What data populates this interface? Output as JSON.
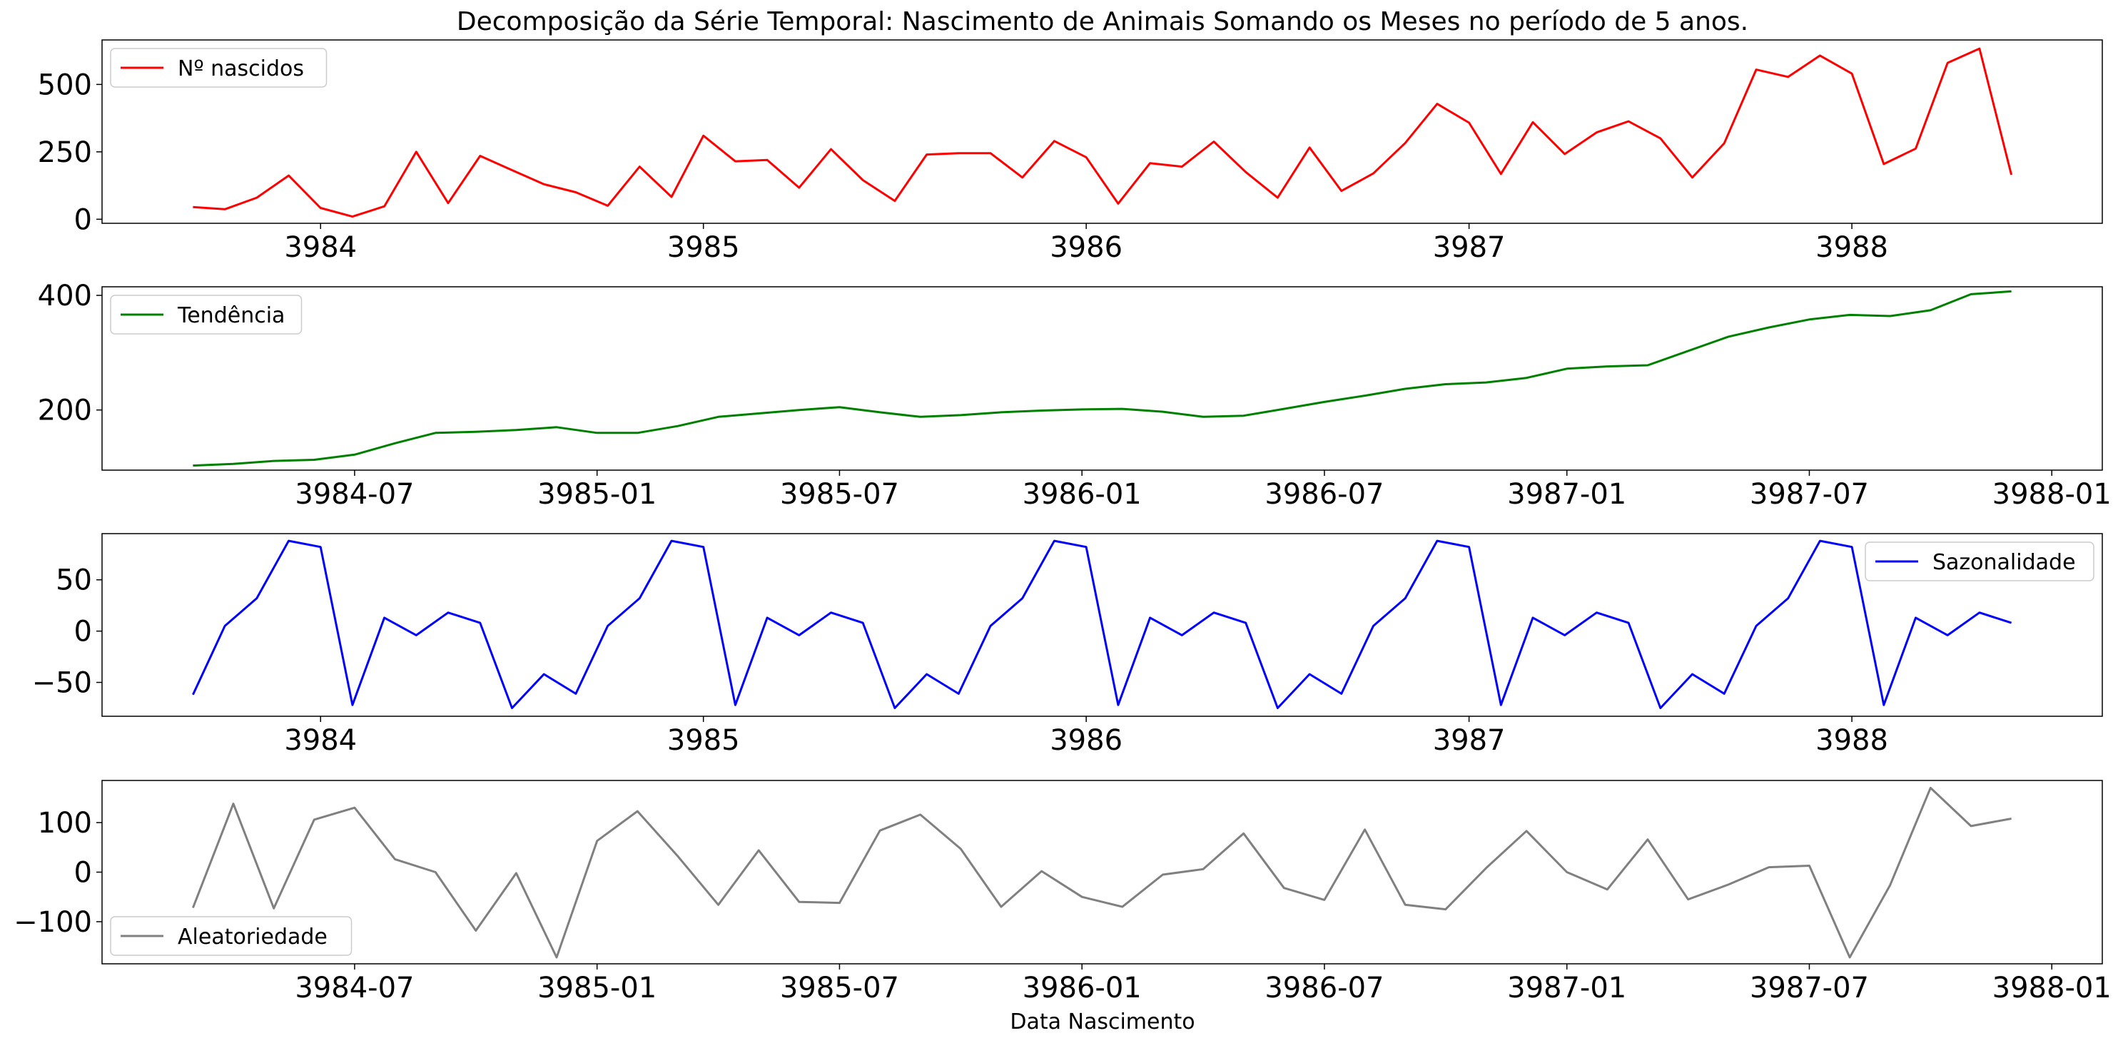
{
  "figure": {
    "title": "Decomposição da Série Temporal: Nascimento de Animais Somando os Meses no período de 5 anos.",
    "xlabel": "Data Nascimento"
  },
  "chart_data": [
    {
      "type": "line",
      "color": "#ff0000",
      "series": [
        {
          "name": "Nº nascidos",
          "values": [
            45,
            37,
            80,
            162,
            42,
            10,
            48,
            250,
            60,
            235,
            182,
            130,
            100,
            50,
            195,
            83,
            310,
            215,
            220,
            117,
            260,
            145,
            68,
            240,
            245,
            245,
            155,
            290,
            230,
            58,
            208,
            195,
            288,
            175,
            80,
            266,
            105,
            170,
            283,
            428,
            358,
            168,
            360,
            242,
            322,
            363,
            300,
            155,
            282,
            555,
            528,
            607,
            540,
            205,
            262,
            580,
            633,
            165
          ]
        }
      ],
      "x_start": "3983-09",
      "x_ticks": [
        "3984",
        "3985",
        "3986",
        "3987",
        "3988"
      ],
      "y_ticks": [
        0,
        250,
        500
      ],
      "ylim": [
        -15,
        665
      ],
      "legend": "upper-left"
    },
    {
      "type": "line",
      "color": "#008000",
      "series": [
        {
          "name": "Tendência",
          "values": [
            103,
            106,
            111,
            113,
            122,
            142,
            160,
            162,
            165,
            170,
            160,
            160,
            172,
            188,
            194,
            200,
            205,
            196,
            188,
            191,
            196,
            199,
            201,
            202,
            197,
            188,
            190,
            202,
            214,
            225,
            237,
            245,
            248,
            256,
            272,
            276,
            278,
            303,
            328,
            344,
            358,
            366,
            364,
            374,
            402,
            407
          ]
        }
      ],
      "x_start": "3984-03",
      "x_ticks": [
        "3984-07",
        "3985-01",
        "3985-07",
        "3986-01",
        "3986-07",
        "3987-01",
        "3987-07",
        "3988-01"
      ],
      "y_ticks": [
        200,
        400
      ],
      "ylim": [
        95,
        415
      ],
      "legend": "upper-left"
    },
    {
      "type": "line",
      "color": "#0000ff",
      "series": [
        {
          "name": "Sazonalidade",
          "values": [
            -62,
            5,
            32,
            88,
            82,
            -72,
            13,
            -4,
            18,
            8,
            -75,
            -42,
            -61,
            5,
            32,
            88,
            82,
            -72,
            13,
            -4,
            18,
            8,
            -75,
            -42,
            -61,
            5,
            32,
            88,
            82,
            -72,
            13,
            -4,
            18,
            8,
            -75,
            -42,
            -61,
            5,
            32,
            88,
            82,
            -72,
            13,
            -4,
            18,
            8,
            -75,
            -42,
            -61,
            5,
            32,
            88,
            82,
            -72,
            13,
            -4,
            18,
            8
          ]
        }
      ],
      "x_start": "3983-09",
      "x_ticks": [
        "3984",
        "3985",
        "3986",
        "3987",
        "3988"
      ],
      "y_ticks": [
        -50,
        0,
        50
      ],
      "ylim": [
        -83,
        95
      ],
      "legend": "upper-right"
    },
    {
      "type": "line",
      "color": "#808080",
      "series": [
        {
          "name": "Aleatoriedade",
          "values": [
            -72,
            138,
            -73,
            106,
            130,
            26,
            0,
            -118,
            -2,
            -172,
            63,
            123,
            32,
            -66,
            44,
            -60,
            -62,
            84,
            116,
            47,
            -70,
            2,
            -50,
            -70,
            -5,
            6,
            78,
            -32,
            -56,
            86,
            -66,
            -75,
            8,
            83,
            0,
            -35,
            66,
            -55,
            -25,
            10,
            13,
            -172,
            -26,
            170,
            93,
            108
          ]
        }
      ],
      "x_start": "3984-03",
      "x_ticks": [
        "3984-07",
        "3985-01",
        "3985-07",
        "3986-01",
        "3986-07",
        "3987-01",
        "3987-07",
        "3988-01"
      ],
      "y_ticks": [
        -100,
        0,
        100
      ],
      "ylim": [
        -185,
        185
      ],
      "legend": "lower-left"
    }
  ]
}
